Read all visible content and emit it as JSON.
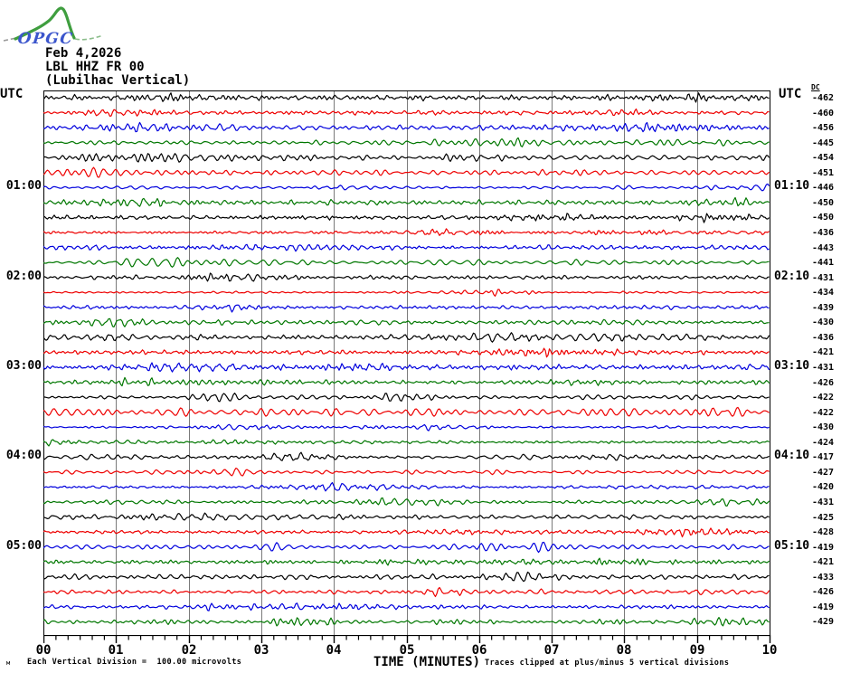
{
  "logo": {
    "text": "OPGC",
    "green": "#3f9e3f",
    "blue": "#3b55cc",
    "dash_gray": "#999999"
  },
  "header": {
    "date": "Feb 4,2026",
    "station": "LBL HHZ FR 00",
    "location": "(Lubilhac Vertical)"
  },
  "axes": {
    "left_label": "UTC",
    "right_label": "UTC",
    "dc_label": "DC",
    "left_times": [
      "01:00",
      "02:00",
      "03:00",
      "04:00",
      "05:00"
    ],
    "right_times": [
      "01:10",
      "02:10",
      "03:10",
      "04:10",
      "05:10"
    ],
    "x_ticks": [
      "00",
      "01",
      "02",
      "03",
      "04",
      "05",
      "06",
      "07",
      "08",
      "09",
      "10"
    ],
    "x_title": "TIME (MINUTES)"
  },
  "footer": {
    "corner_mark": "м",
    "scale_note": "Each Vertical Division =  100.00 microvolts",
    "clip_note": "Traces clipped at plus/minus 5 vertical divisions"
  },
  "chart_data": {
    "type": "line",
    "title": "Helicorder seismogram, LBL HHZ FR 00 (Lubilhac Vertical), Feb 4,2026",
    "xlabel": "TIME (MINUTES)",
    "ylabel": "UTC",
    "minutes_per_line": 10,
    "x_range_minutes": [
      0,
      10
    ],
    "grid": "vertical lines every minute",
    "legend_position": "none",
    "trace_colors": {
      "black": "#000000",
      "red": "#ee0000",
      "blue": "#0000dd",
      "green": "#007700"
    },
    "color_cycle": [
      "black",
      "red",
      "blue",
      "green"
    ],
    "traces": [
      {
        "start": "00:00",
        "color": "black",
        "dc": -462
      },
      {
        "start": "00:10",
        "color": "red",
        "dc": -460
      },
      {
        "start": "00:20",
        "color": "blue",
        "dc": -456
      },
      {
        "start": "00:30",
        "color": "green",
        "dc": -445
      },
      {
        "start": "00:40",
        "color": "black",
        "dc": -454
      },
      {
        "start": "00:50",
        "color": "red",
        "dc": -451
      },
      {
        "start": "01:00",
        "color": "blue",
        "dc": -446
      },
      {
        "start": "01:10",
        "color": "green",
        "dc": -450
      },
      {
        "start": "01:20",
        "color": "black",
        "dc": -450
      },
      {
        "start": "01:30",
        "color": "red",
        "dc": -436
      },
      {
        "start": "01:40",
        "color": "blue",
        "dc": -443
      },
      {
        "start": "01:50",
        "color": "green",
        "dc": -441
      },
      {
        "start": "02:00",
        "color": "black",
        "dc": -431
      },
      {
        "start": "02:10",
        "color": "red",
        "dc": -434
      },
      {
        "start": "02:20",
        "color": "blue",
        "dc": -439
      },
      {
        "start": "02:30",
        "color": "green",
        "dc": -430
      },
      {
        "start": "02:40",
        "color": "black",
        "dc": -436
      },
      {
        "start": "02:50",
        "color": "red",
        "dc": -421
      },
      {
        "start": "03:00",
        "color": "blue",
        "dc": -431
      },
      {
        "start": "03:10",
        "color": "green",
        "dc": -426
      },
      {
        "start": "03:20",
        "color": "black",
        "dc": -422
      },
      {
        "start": "03:30",
        "color": "red",
        "dc": -422
      },
      {
        "start": "03:40",
        "color": "blue",
        "dc": -430
      },
      {
        "start": "03:50",
        "color": "green",
        "dc": -424
      },
      {
        "start": "04:00",
        "color": "black",
        "dc": -417
      },
      {
        "start": "04:10",
        "color": "red",
        "dc": -427
      },
      {
        "start": "04:20",
        "color": "blue",
        "dc": -420
      },
      {
        "start": "04:30",
        "color": "green",
        "dc": -431
      },
      {
        "start": "04:40",
        "color": "black",
        "dc": -425
      },
      {
        "start": "04:50",
        "color": "red",
        "dc": -428
      },
      {
        "start": "05:00",
        "color": "blue",
        "dc": -419
      },
      {
        "start": "05:10",
        "color": "green",
        "dc": -421
      },
      {
        "start": "05:20",
        "color": "black",
        "dc": -433
      },
      {
        "start": "05:30",
        "color": "red",
        "dc": -426
      },
      {
        "start": "05:40",
        "color": "blue",
        "dc": -419
      },
      {
        "start": "05:50",
        "color": "green",
        "dc": -429
      }
    ],
    "waveform_note": "continuous band-limited microseismic noise, typical amplitude about 1 vertical division, occasional small bursts"
  }
}
